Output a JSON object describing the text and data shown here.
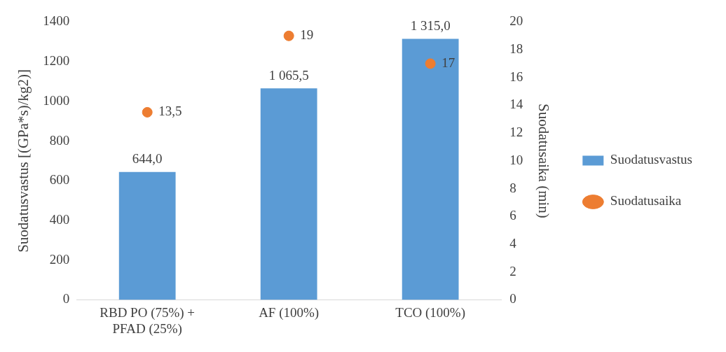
{
  "chart_data": {
    "type": "bar",
    "categories": [
      "RBD PO (75%) + PFAD (25%)",
      "AF (100%)",
      "TCO (100%)"
    ],
    "series": [
      {
        "name": "Suodatusvastus",
        "color": "#5b9bd5",
        "values": [
          644.0,
          1065.5,
          1315.0
        ],
        "value_labels": [
          "644,0",
          "1 065,5",
          "1 315,0"
        ]
      },
      {
        "name": "Suodatusaika",
        "type": "scatter",
        "axis": "y2",
        "color": "#ed7d31",
        "x": [
          "RBD PO (75%) + PFAD (25%)",
          "AF (100%)",
          "TCO (100%)"
        ],
        "values": [
          13.5,
          19,
          17
        ],
        "value_labels": [
          "13,5",
          "19",
          "17"
        ]
      }
    ],
    "ylabel": "Suodatusvastus [(GPa*s)/kg2)]",
    "y2label": "Suodatusaika (min)",
    "ylim": [
      0,
      1400
    ],
    "yticks": [
      0,
      200,
      400,
      600,
      800,
      1000,
      1200,
      1400
    ],
    "y2lim": [
      0,
      20
    ],
    "y2ticks": [
      0,
      2,
      4,
      6,
      8,
      10,
      12,
      14,
      16,
      18,
      20
    ],
    "legend": "right",
    "marker": "circle",
    "grid": false
  }
}
